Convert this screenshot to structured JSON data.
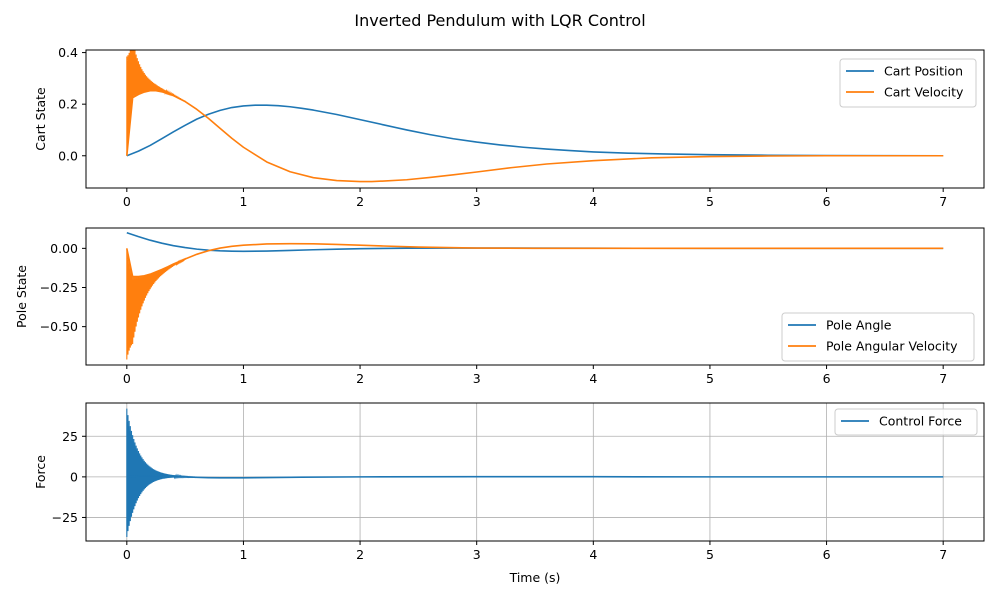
{
  "figure": {
    "title": "Inverted Pendulum with LQR Control",
    "xlabel": "Time (s)"
  },
  "chart_data": [
    {
      "type": "line",
      "ylabel": "Cart State",
      "xlim": [
        -0.35,
        7.35
      ],
      "ylim": [
        -0.125,
        0.41
      ],
      "xticks": [
        0,
        1,
        2,
        3,
        4,
        5,
        6,
        7
      ],
      "yticks": [
        0.0,
        0.2,
        0.4
      ],
      "ytick_labels": [
        "0.0",
        "0.2",
        "0.4"
      ],
      "grid": false,
      "legend": "top-right",
      "series": [
        {
          "name": "Cart Position",
          "color": "#1f77b4",
          "x": [
            0,
            0.1,
            0.2,
            0.3,
            0.4,
            0.5,
            0.6,
            0.7,
            0.8,
            0.9,
            1.0,
            1.1,
            1.2,
            1.3,
            1.4,
            1.5,
            1.6,
            1.8,
            2.0,
            2.2,
            2.4,
            2.6,
            2.8,
            3.0,
            3.2,
            3.4,
            3.6,
            3.8,
            4.0,
            4.3,
            4.6,
            5.0,
            5.5,
            6.0,
            6.5,
            7.0
          ],
          "y": [
            0.0,
            0.018,
            0.04,
            0.066,
            0.093,
            0.118,
            0.142,
            0.161,
            0.176,
            0.187,
            0.193,
            0.196,
            0.196,
            0.194,
            0.19,
            0.184,
            0.177,
            0.16,
            0.14,
            0.12,
            0.1,
            0.082,
            0.066,
            0.053,
            0.042,
            0.033,
            0.026,
            0.02,
            0.015,
            0.01,
            0.007,
            0.004,
            0.002,
            0.001,
            0.0005,
            0.0
          ]
        },
        {
          "name": "Cart Velocity",
          "color": "#ff7f0e",
          "oscillation": {
            "upper_start": 0.385,
            "lower_start": 0.0,
            "decay": 11,
            "end": 0.5,
            "step": 0.01
          },
          "x": [
            0,
            0.05,
            0.1,
            0.15,
            0.2,
            0.25,
            0.3,
            0.35,
            0.4,
            0.5,
            0.6,
            0.7,
            0.8,
            0.9,
            1.0,
            1.2,
            1.4,
            1.6,
            1.8,
            2.0,
            2.1,
            2.2,
            2.4,
            2.6,
            2.8,
            3.0,
            3.3,
            3.6,
            4.0,
            4.5,
            5.0,
            5.5,
            6.0,
            6.5,
            7.0
          ],
          "y": [
            0.0,
            0.225,
            0.238,
            0.247,
            0.252,
            0.252,
            0.248,
            0.241,
            0.233,
            0.21,
            0.18,
            0.145,
            0.106,
            0.068,
            0.033,
            -0.024,
            -0.062,
            -0.085,
            -0.096,
            -0.1,
            -0.1,
            -0.098,
            -0.093,
            -0.084,
            -0.074,
            -0.063,
            -0.046,
            -0.032,
            -0.019,
            -0.008,
            -0.003,
            -0.001,
            0.0,
            0.0,
            0.0
          ]
        }
      ]
    },
    {
      "type": "line",
      "ylabel": "Pole State",
      "xlim": [
        -0.35,
        7.35
      ],
      "ylim": [
        -0.745,
        0.13
      ],
      "xticks": [
        0,
        1,
        2,
        3,
        4,
        5,
        6,
        7
      ],
      "yticks": [
        0.0,
        -0.25,
        -0.5
      ],
      "ytick_labels": [
        "0.00",
        "−0.25",
        "−0.50"
      ],
      "grid": false,
      "legend": "bottom-right",
      "series": [
        {
          "name": "Pole Angle",
          "color": "#1f77b4",
          "x": [
            0,
            0.1,
            0.2,
            0.3,
            0.4,
            0.5,
            0.6,
            0.7,
            0.8,
            0.9,
            1.0,
            1.2,
            1.4,
            1.6,
            1.8,
            2.0,
            2.4,
            2.8,
            3.2,
            4.0,
            5.0,
            6.0,
            7.0
          ],
          "y": [
            0.1,
            0.075,
            0.052,
            0.033,
            0.017,
            0.005,
            -0.005,
            -0.012,
            -0.016,
            -0.018,
            -0.019,
            -0.017,
            -0.013,
            -0.009,
            -0.005,
            -0.002,
            0.001,
            0.002,
            0.002,
            0.001,
            0.0,
            0.0,
            0.0
          ]
        },
        {
          "name": "Pole Angular Velocity",
          "color": "#ff7f0e",
          "oscillation": {
            "upper_start": 0.0,
            "lower_start": -0.71,
            "decay": 10,
            "end": 0.5,
            "step": 0.01
          },
          "x": [
            0,
            0.05,
            0.1,
            0.15,
            0.2,
            0.25,
            0.3,
            0.35,
            0.4,
            0.5,
            0.6,
            0.7,
            0.8,
            0.9,
            1.0,
            1.2,
            1.4,
            1.6,
            1.8,
            2.0,
            2.2,
            2.5,
            3.0,
            3.5,
            4.0,
            5.0,
            6.0,
            7.0
          ],
          "y": [
            0.0,
            -0.18,
            -0.18,
            -0.175,
            -0.165,
            -0.15,
            -0.135,
            -0.118,
            -0.1,
            -0.068,
            -0.038,
            -0.015,
            0.002,
            0.013,
            0.02,
            0.028,
            0.03,
            0.029,
            0.025,
            0.02,
            0.015,
            0.008,
            0.002,
            0.0,
            0.0,
            0.0,
            0.0,
            0.0
          ]
        }
      ]
    },
    {
      "type": "line",
      "ylabel": "Force",
      "xlim": [
        -0.35,
        7.35
      ],
      "ylim": [
        -39.5,
        45.5
      ],
      "xticks": [
        0,
        1,
        2,
        3,
        4,
        5,
        6,
        7
      ],
      "yticks": [
        25,
        0,
        -25
      ],
      "ytick_labels": [
        "25",
        "0",
        "−25"
      ],
      "grid": true,
      "legend": "top-right",
      "series": [
        {
          "name": "Control Force",
          "color": "#1f77b4",
          "oscillation": {
            "upper_start": 42,
            "lower_start": -37,
            "decay": 10,
            "end": 0.6,
            "step": 0.01
          },
          "x": [
            0,
            0.1,
            0.2,
            0.3,
            0.4,
            0.5,
            0.6,
            0.7,
            0.8,
            0.9,
            1.0,
            1.2,
            1.5,
            2.0,
            3.0,
            4.0,
            5.0,
            6.0,
            7.0
          ],
          "y": [
            0,
            0.5,
            0.6,
            0.5,
            0.3,
            0.0,
            -0.3,
            -0.5,
            -0.6,
            -0.6,
            -0.6,
            -0.4,
            -0.2,
            0.0,
            0.1,
            0.1,
            0.0,
            0.0,
            0.0
          ]
        }
      ]
    }
  ]
}
